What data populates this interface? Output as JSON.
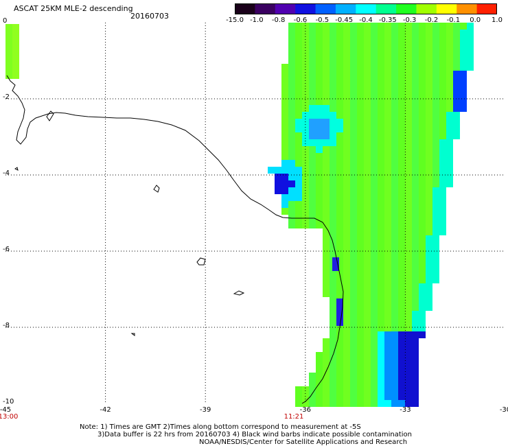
{
  "header": {
    "title": "ASCAT 25KM MLE-2 descending",
    "date": "20160703"
  },
  "colorbar": {
    "labels": [
      "-15.0",
      "-1.0",
      "-0.8",
      "-0.6",
      "-0.5",
      "-0.45",
      "-0.4",
      "-0.35",
      "-0.3",
      "-0.2",
      "-0.1",
      "0.0",
      "1.0"
    ],
    "colors": [
      "#1a001a",
      "#3a0060",
      "#5000b0",
      "#1010e0",
      "#0060ff",
      "#00b0ff",
      "#00ffff",
      "#00ff90",
      "#20ff20",
      "#a0ff00",
      "#ffff00",
      "#ff9000",
      "#ff2000"
    ]
  },
  "axes": {
    "x_ticks": [
      "-45",
      "-42",
      "-39",
      "-36",
      "-33",
      "-30"
    ],
    "y_ticks": [
      "0",
      "-2",
      "-4",
      "-6",
      "-8",
      "-10"
    ],
    "x_range": [
      -45,
      -30
    ],
    "y_range": [
      -10,
      0
    ]
  },
  "times": {
    "left": "13:00",
    "mid": "11:21"
  },
  "notes": {
    "line1": "Note: 1) Times are GMT 2)Times along bottom correspond to measurement at -5S",
    "line2": "3)Data buffer is 22 hrs from 20160703 4) Black wind barbs indicate possible contamination",
    "line3": "NOAA/NESDIS/Center for Satellite Applications and Research"
  }
}
